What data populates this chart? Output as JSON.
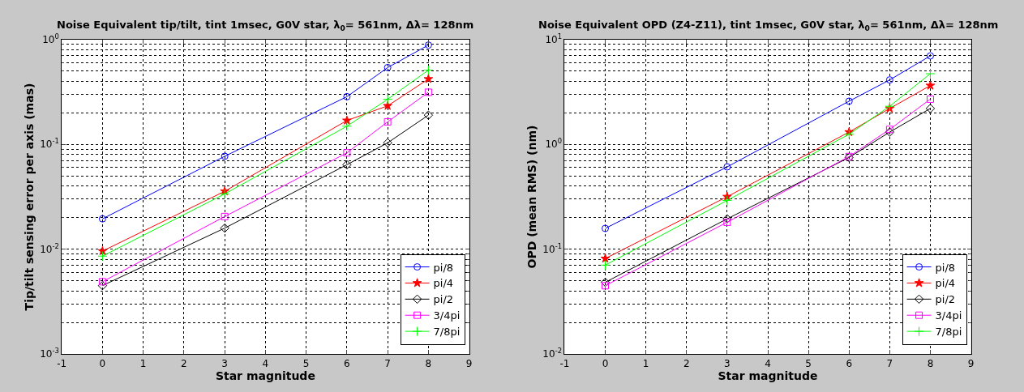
{
  "chart_data": [
    {
      "type": "line",
      "title": "Noise Equivalent tip/tilt, tint 1msec, G0V star, λ$_{0}$= 561nm, Δλ= 128nm",
      "xlabel": "Star magnitude",
      "ylabel": "Tip/tilt sensing error per axis (mas)",
      "x": [
        0,
        3,
        6,
        7,
        8
      ],
      "xlim": [
        -1,
        9
      ],
      "xticks": [
        -1,
        0,
        1,
        2,
        3,
        4,
        5,
        6,
        7,
        8,
        9
      ],
      "log": "y",
      "ylim": [
        0.001,
        1
      ],
      "yticks": [
        {
          "value": 0.001,
          "label": "10$^{-3}$"
        },
        {
          "value": 0.01,
          "label": "10$^{-2}$"
        },
        {
          "value": 0.1,
          "label": "10$^{-1}$"
        },
        {
          "value": 1,
          "label": "10$^{0}$"
        }
      ],
      "grid": true,
      "legend": "bottom right",
      "series": [
        {
          "name": "pi/8",
          "color": "#0000ff",
          "marker": "circle",
          "values": [
            0.0195,
            0.077,
            0.285,
            0.54,
            0.885
          ]
        },
        {
          "name": "pi/4",
          "color": "#ff0000",
          "marker": "star",
          "values": [
            0.0096,
            0.0357,
            0.169,
            0.233,
            0.42
          ]
        },
        {
          "name": "pi/2",
          "color": "#000000",
          "marker": "diamond",
          "values": [
            0.0045,
            0.0159,
            0.064,
            0.1035,
            0.19
          ]
        },
        {
          "name": "3/4pi",
          "color": "#ff00ff",
          "marker": "square",
          "values": [
            0.0049,
            0.0205,
            0.083,
            0.164,
            0.314
          ]
        },
        {
          "name": "7/8pi",
          "color": "#00ff00",
          "marker": "cross",
          "values": [
            0.0086,
            0.0337,
            0.149,
            0.269,
            0.51
          ]
        }
      ]
    },
    {
      "type": "line",
      "title": "Noise Equivalent OPD (Z4-Z11), tint 1msec, G0V star, λ$_{0}$= 561nm, Δλ= 128nm",
      "xlabel": "Star magnitude",
      "ylabel": "OPD (mean RMS) (nm)",
      "x": [
        0,
        3,
        6,
        7,
        8
      ],
      "xlim": [
        -1,
        9
      ],
      "xticks": [
        -1,
        0,
        1,
        2,
        3,
        4,
        5,
        6,
        7,
        8,
        9
      ],
      "log": "y",
      "ylim": [
        0.01,
        10
      ],
      "yticks": [
        {
          "value": 0.01,
          "label": "10$^{-2}$"
        },
        {
          "value": 0.1,
          "label": "10$^{-1}$"
        },
        {
          "value": 1,
          "label": "10$^{0}$"
        },
        {
          "value": 10,
          "label": "10$^{1}$"
        }
      ],
      "grid": true,
      "legend": "bottom right",
      "series": [
        {
          "name": "pi/8",
          "color": "#0000ff",
          "marker": "circle",
          "values": [
            0.158,
            0.61,
            2.58,
            4.12,
            6.98
          ]
        },
        {
          "name": "pi/4",
          "color": "#ff0000",
          "marker": "star",
          "values": [
            0.0815,
            0.317,
            1.31,
            2.2,
            3.64
          ]
        },
        {
          "name": "pi/2",
          "color": "#000000",
          "marker": "diamond",
          "values": [
            0.0484,
            0.195,
            0.75,
            1.31,
            2.2
          ]
        },
        {
          "name": "3/4pi",
          "color": "#ff00ff",
          "marker": "square",
          "values": [
            0.0449,
            0.181,
            0.766,
            1.39,
            2.7
          ]
        },
        {
          "name": "7/8pi",
          "color": "#00ff00",
          "marker": "cross",
          "values": [
            0.0706,
            0.292,
            1.25,
            2.31,
            4.72
          ]
        }
      ]
    }
  ]
}
